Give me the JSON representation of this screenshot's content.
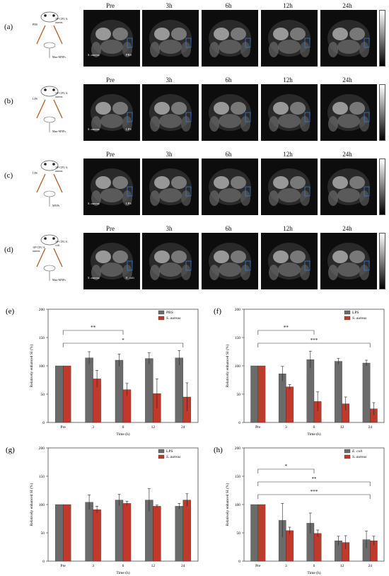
{
  "mri_rows": [
    {
      "letter": "(a)",
      "times": [
        "Pre",
        "3h",
        "6h",
        "12h",
        "24h"
      ],
      "left_text": "PBS",
      "right_text": "10⁸ CFU S. aureus",
      "bottom_text": "Man-MNPs",
      "arrow_left": "S. aureus",
      "arrow_right": "PBS"
    },
    {
      "letter": "(b)",
      "times": [
        "Pre",
        "3h",
        "6h",
        "12h",
        "24h"
      ],
      "left_text": "LPS",
      "right_text": "10⁸ CFU S. aureus",
      "bottom_text": "Man-MNPs",
      "arrow_left": "S. aureus",
      "arrow_right": "LPS"
    },
    {
      "letter": "(c)",
      "times": [
        "Pre",
        "3h",
        "6h",
        "12h",
        "24h"
      ],
      "left_text": "LPS",
      "right_text": "10⁸ CFU S. aureus",
      "bottom_text": "MNPs",
      "arrow_left": "S. aureus",
      "arrow_right": "LPS"
    },
    {
      "letter": "(d)",
      "times": [
        "Pre",
        "3h",
        "6h",
        "12h",
        "24h"
      ],
      "left_text": "10⁸ CFU S. aureus",
      "right_text": "10⁸ CFU E. coli",
      "bottom_text": "Man-MNPs",
      "arrow_left": "S. aureus",
      "arrow_right": "E. coli"
    }
  ],
  "chart_data": [
    {
      "panel": "(e)",
      "type": "bar",
      "categories": [
        "Pre",
        "3",
        "6",
        "12",
        "24"
      ],
      "xlabel": "Time (h)",
      "ylabel": "Relatively enhanced SI (%)",
      "ylim": [
        0,
        200
      ],
      "yticks": [
        0,
        50,
        100,
        150,
        200
      ],
      "series": [
        {
          "name": "PBS",
          "values": [
            100,
            114,
            110,
            113,
            114
          ],
          "errors": [
            0,
            11,
            11,
            10,
            13
          ],
          "color": "#6b6b6b"
        },
        {
          "name": "S. aureus",
          "values": [
            100,
            77,
            58,
            51,
            45
          ],
          "errors": [
            0,
            15,
            11,
            26,
            25
          ],
          "color": "#c0392b"
        }
      ],
      "significance": [
        "**",
        "*"
      ]
    },
    {
      "panel": "(f)",
      "type": "bar",
      "categories": [
        "Pre",
        "3",
        "6",
        "12",
        "24"
      ],
      "xlabel": "Time (h)",
      "ylabel": "Relatively enhanced SI (%)",
      "ylim": [
        0,
        200
      ],
      "yticks": [
        0,
        50,
        100,
        150,
        200
      ],
      "series": [
        {
          "name": "LPS",
          "values": [
            100,
            86,
            111,
            108,
            105
          ],
          "errors": [
            0,
            13,
            15,
            5,
            5
          ],
          "color": "#6b6b6b"
        },
        {
          "name": "S. aureus",
          "values": [
            100,
            63,
            37,
            33,
            24
          ],
          "errors": [
            0,
            4,
            17,
            12,
            11
          ],
          "color": "#c0392b"
        }
      ],
      "significance": [
        "**",
        "***"
      ]
    },
    {
      "panel": "(g)",
      "type": "bar",
      "categories": [
        "Pre",
        "3",
        "6",
        "12",
        "24"
      ],
      "xlabel": "Time (h)",
      "ylabel": "Relatively enhanced SI (%)",
      "ylim": [
        0,
        200
      ],
      "yticks": [
        0,
        50,
        100,
        150,
        200
      ],
      "series": [
        {
          "name": "LPS",
          "values": [
            100,
            104,
            108,
            108,
            97
          ],
          "errors": [
            0,
            13,
            10,
            20,
            5
          ],
          "color": "#6b6b6b"
        },
        {
          "name": "S. aureus",
          "values": [
            100,
            91,
            102,
            97,
            108
          ],
          "errors": [
            0,
            6,
            4,
            2,
            11
          ],
          "color": "#c0392b"
        }
      ],
      "significance": []
    },
    {
      "panel": "(h)",
      "type": "bar",
      "categories": [
        "Pre",
        "3",
        "6",
        "12",
        "24"
      ],
      "xlabel": "Time (h)",
      "ylabel": "Relatively enhanced SI (%)",
      "ylim": [
        0,
        200
      ],
      "yticks": [
        0,
        50,
        100,
        150,
        200
      ],
      "series": [
        {
          "name": "E. coli",
          "values": [
            100,
            72,
            67,
            36,
            38
          ],
          "errors": [
            0,
            30,
            18,
            8,
            15
          ],
          "color": "#6b6b6b"
        },
        {
          "name": "S. aureus",
          "values": [
            100,
            54,
            49,
            33,
            36
          ],
          "errors": [
            0,
            6,
            6,
            12,
            8
          ],
          "color": "#c0392b"
        }
      ],
      "significance": [
        "*",
        "**",
        "***"
      ]
    }
  ]
}
